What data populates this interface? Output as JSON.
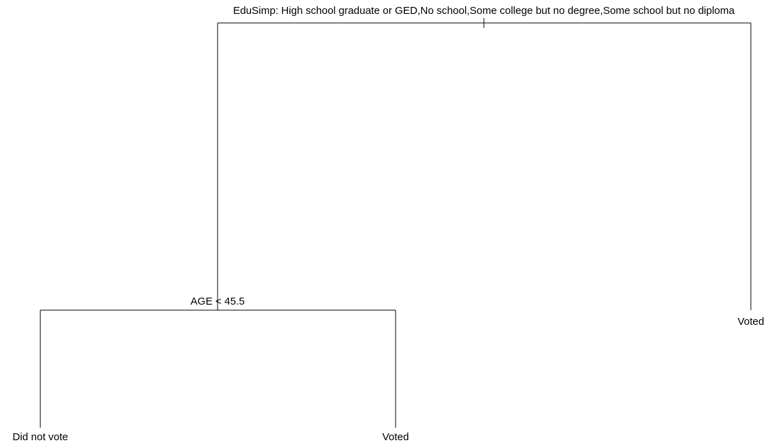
{
  "tree": {
    "root_split": "EduSimp: High school graduate or GED,No school,Some college but no degree,Some school but no diploma",
    "left_split": "AGE < 45.5",
    "leaves": {
      "left_left": "Did not vote",
      "left_right": "Voted",
      "right": "Voted"
    }
  }
}
